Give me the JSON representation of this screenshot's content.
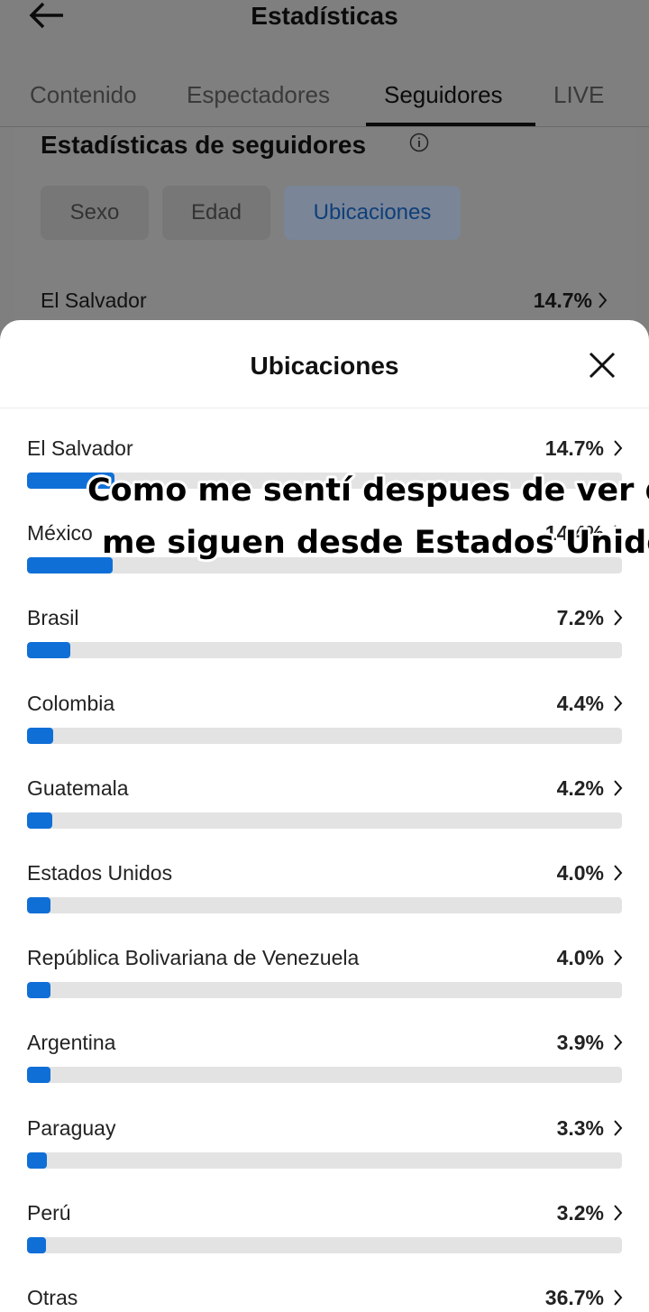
{
  "header": {
    "title": "Estadísticas",
    "tabs": [
      "Contenido",
      "Espectadores",
      "Seguidores",
      "LIVE"
    ],
    "active_tab": 2
  },
  "section": {
    "title": "Estadísticas de seguidores",
    "chips": [
      "Sexo",
      "Edad",
      "Ubicaciones"
    ],
    "active_chip": 2,
    "preview": {
      "name": "El Salvador",
      "label": "14.7%"
    }
  },
  "sheet": {
    "title": "Ubicaciones",
    "items": [
      {
        "name": "El Salvador",
        "value": 14.7,
        "label": "14.7%"
      },
      {
        "name": "México",
        "value": 14.4,
        "label": "14.4%"
      },
      {
        "name": "Brasil",
        "value": 7.2,
        "label": "7.2%"
      },
      {
        "name": "Colombia",
        "value": 4.4,
        "label": "4.4%"
      },
      {
        "name": "Guatemala",
        "value": 4.2,
        "label": "4.2%"
      },
      {
        "name": "Estados Unidos",
        "value": 4.0,
        "label": "4.0%"
      },
      {
        "name": "República Bolivariana de Venezuela",
        "value": 4.0,
        "label": "4.0%"
      },
      {
        "name": "Argentina",
        "value": 3.9,
        "label": "3.9%"
      },
      {
        "name": "Paraguay",
        "value": 3.3,
        "label": "3.3%"
      },
      {
        "name": "Perú",
        "value": 3.2,
        "label": "3.2%"
      },
      {
        "name": "Otras",
        "value": 36.7,
        "label": "36.7%"
      }
    ]
  },
  "caption": [
    "Como me sentí despues de ver que",
    "me siguen desde Estados Unidos."
  ]
}
